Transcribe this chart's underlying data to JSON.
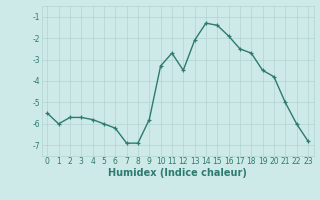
{
  "x": [
    0,
    1,
    2,
    3,
    4,
    5,
    6,
    7,
    8,
    9,
    10,
    11,
    12,
    13,
    14,
    15,
    16,
    17,
    18,
    19,
    20,
    21,
    22,
    23
  ],
  "y": [
    -5.5,
    -6.0,
    -5.7,
    -5.7,
    -5.8,
    -6.0,
    -6.2,
    -6.9,
    -6.9,
    -5.8,
    -3.3,
    -2.7,
    -3.5,
    -2.1,
    -1.3,
    -1.4,
    -1.9,
    -2.5,
    -2.7,
    -3.5,
    -3.8,
    -5.0,
    -6.0,
    -6.8
  ],
  "line_color": "#2d7a6e",
  "marker": "+",
  "background_color": "#ceeae8",
  "grid_color": "#b0d4d0",
  "xlabel": "Humidex (Indice chaleur)",
  "xlim": [
    -0.5,
    23.5
  ],
  "ylim": [
    -7.5,
    -0.5
  ],
  "yticks": [
    -7,
    -6,
    -5,
    -4,
    -3,
    -2,
    -1
  ],
  "xticks": [
    0,
    1,
    2,
    3,
    4,
    5,
    6,
    7,
    8,
    9,
    10,
    11,
    12,
    13,
    14,
    15,
    16,
    17,
    18,
    19,
    20,
    21,
    22,
    23
  ],
  "tick_fontsize": 5.5,
  "xlabel_fontsize": 7,
  "linewidth": 1.0,
  "markersize": 3.5,
  "markeredgewidth": 0.9
}
